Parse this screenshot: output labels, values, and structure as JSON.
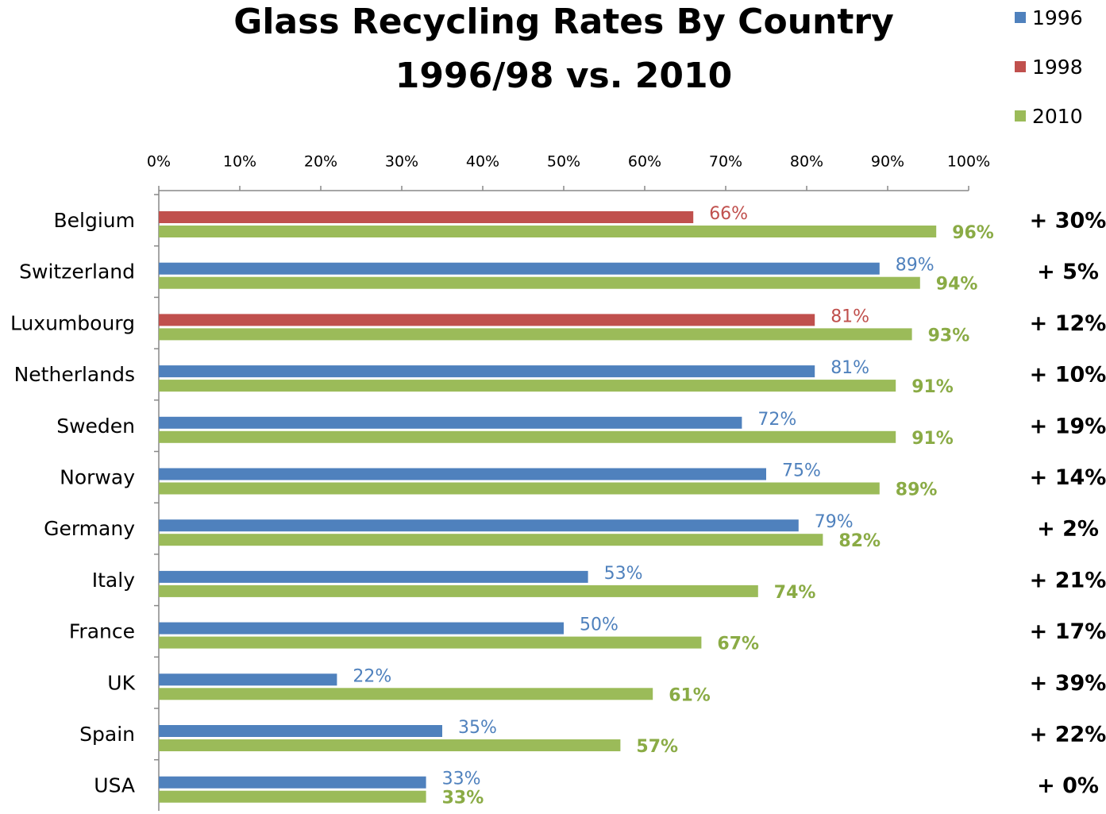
{
  "chart_data": {
    "type": "hbar",
    "title": "Glass Recycling Rates By Country",
    "subtitle": "1996/98 vs. 2010",
    "categories": [
      "Belgium",
      "Switzerland",
      "Luxumbourg",
      "Netherlands",
      "Sweden",
      "Norway",
      "Germany",
      "Italy",
      "France",
      "UK",
      "Spain",
      "USA"
    ],
    "series": [
      {
        "name": "1996",
        "color": "#4f81bd",
        "values": [
          null,
          89,
          null,
          81,
          72,
          75,
          79,
          53,
          50,
          22,
          35,
          33
        ],
        "value_labels": [
          null,
          "89%",
          null,
          "81%",
          "72%",
          "75%",
          "79%",
          "53%",
          "50%",
          "22%",
          "35%",
          "33%"
        ]
      },
      {
        "name": "1998",
        "color": "#c0504d",
        "values": [
          66,
          null,
          81,
          null,
          null,
          null,
          null,
          null,
          null,
          null,
          null,
          null
        ],
        "value_labels": [
          "66%",
          null,
          "81%",
          null,
          null,
          null,
          null,
          null,
          null,
          null,
          null,
          null
        ]
      },
      {
        "name": "2010",
        "color": "#9bbb59",
        "values": [
          96,
          94,
          93,
          91,
          91,
          89,
          82,
          74,
          67,
          61,
          57,
          33
        ],
        "value_labels": [
          "96%",
          "94%",
          "93%",
          "91%",
          "91%",
          "89%",
          "82%",
          "74%",
          "67%",
          "61%",
          "57%",
          "33%"
        ]
      }
    ],
    "annotations": [
      "+ 30%",
      "+ 5%",
      "+ 12%",
      "+ 10%",
      "+ 19%",
      "+ 14%",
      "+ 2%",
      "+ 21%",
      "+ 17%",
      "+ 39%",
      "+ 22%",
      "+ 0%"
    ],
    "xlim": [
      0,
      100
    ],
    "xticks": [
      {
        "value": 0,
        "label": "0%"
      },
      {
        "value": 10,
        "label": "10%"
      },
      {
        "value": 20,
        "label": "20%"
      },
      {
        "value": 30,
        "label": "30%"
      },
      {
        "value": 40,
        "label": "40%"
      },
      {
        "value": 50,
        "label": "50%"
      },
      {
        "value": 60,
        "label": "60%"
      },
      {
        "value": 70,
        "label": "70%"
      },
      {
        "value": 80,
        "label": "80%"
      },
      {
        "value": 90,
        "label": "90%"
      },
      {
        "value": 100,
        "label": "100%"
      }
    ],
    "legend": "top-right"
  }
}
